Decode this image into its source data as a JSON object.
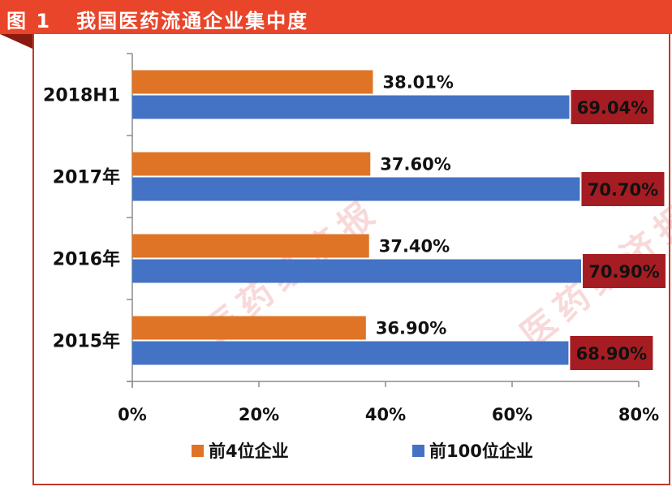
{
  "header": {
    "figure_label": "图 1",
    "title": "我国医药流通企业集中度"
  },
  "watermark": {
    "text": "医药经济报"
  },
  "colors": {
    "header_bg": "#e8452a",
    "orange": "#e07426",
    "blue": "#4472c4",
    "highlight_box": "#a51d22"
  },
  "chart_data": {
    "type": "bar",
    "orientation": "horizontal",
    "categories": [
      "2018H1",
      "2017年",
      "2016年",
      "2015年"
    ],
    "series": [
      {
        "name": "前4位企业",
        "values": [
          38.01,
          37.6,
          37.4,
          36.9
        ],
        "labels": [
          "38.01%",
          "37.60%",
          "37.40%",
          "36.90%"
        ],
        "color": "#e07426"
      },
      {
        "name": "前100位企业",
        "values": [
          69.04,
          70.7,
          70.9,
          68.9
        ],
        "labels": [
          "69.04%",
          "70.70%",
          "70.90%",
          "68.90%"
        ],
        "color": "#4472c4"
      }
    ],
    "xlim": [
      0,
      80
    ],
    "xticks": [
      0,
      20,
      40,
      60,
      80
    ],
    "xtick_labels": [
      "0%",
      "20%",
      "40%",
      "60%",
      "80%"
    ],
    "grid": false,
    "legend_position": "bottom"
  }
}
